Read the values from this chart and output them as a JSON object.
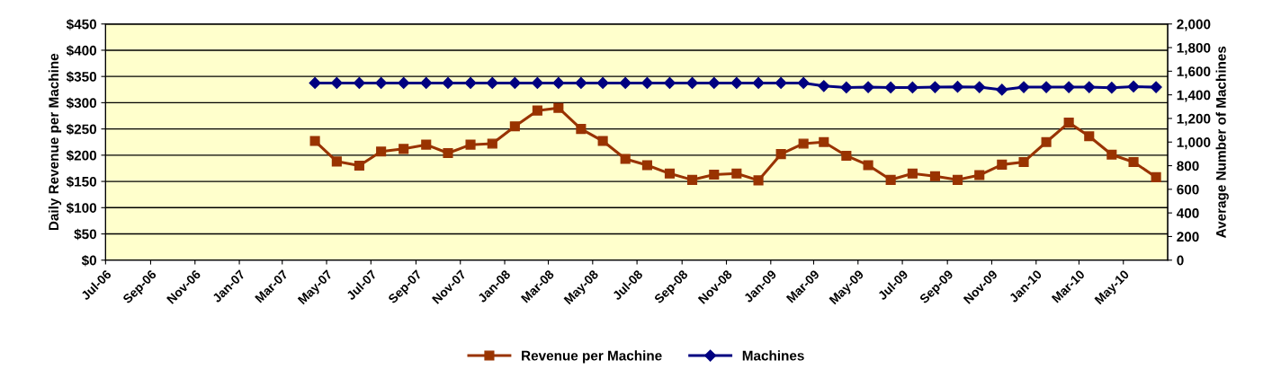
{
  "chart_data": {
    "type": "line",
    "ylabel": "Daily Revenue per Machine",
    "y2label": "Average Number of Machines",
    "x": [
      "2007-04-15",
      "2007-05-15",
      "2007-06-15",
      "2007-07-15",
      "2007-08-15",
      "2007-09-15",
      "2007-10-15",
      "2007-11-15",
      "2007-12-15",
      "2008-01-15",
      "2008-02-15",
      "2008-03-15",
      "2008-04-15",
      "2008-05-15",
      "2008-06-15",
      "2008-07-15",
      "2008-08-15",
      "2008-09-15",
      "2008-10-15",
      "2008-11-15",
      "2008-12-15",
      "2009-01-15",
      "2009-02-15",
      "2009-03-15",
      "2009-04-15",
      "2009-05-15",
      "2009-06-15",
      "2009-07-15",
      "2009-08-15",
      "2009-09-15",
      "2009-10-15",
      "2009-11-15",
      "2009-12-15",
      "2010-01-15",
      "2010-02-15",
      "2010-03-15",
      "2010-04-15",
      "2010-05-15",
      "2010-06-15"
    ],
    "series": [
      {
        "name": "Revenue per Machine",
        "color": "#993300",
        "marker": "square",
        "values": [
          227,
          188,
          180,
          207,
          212,
          220,
          204,
          220,
          222,
          255,
          285,
          290,
          250,
          227,
          193,
          181,
          165,
          153,
          163,
          165,
          152,
          202,
          222,
          225,
          199,
          181,
          153,
          165,
          160,
          153,
          162,
          182,
          187,
          225,
          262,
          236,
          201,
          187,
          158
        ]
      },
      {
        "name": "Machines",
        "color": "#000080",
        "marker": "diamond",
        "axis": "y2",
        "values": [
          1500,
          1500,
          1500,
          1500,
          1500,
          1500,
          1500,
          1500,
          1500,
          1500,
          1500,
          1500,
          1500,
          1500,
          1500,
          1500,
          1500,
          1500,
          1500,
          1500,
          1500,
          1500,
          1500,
          1475,
          1462,
          1465,
          1462,
          1462,
          1465,
          1468,
          1465,
          1443,
          1465,
          1465,
          1465,
          1465,
          1460,
          1470,
          1465
        ]
      }
    ],
    "xlim": [
      "2006-07-01",
      "2010-07-01"
    ],
    "xticks": [
      {
        "value": "2006-07-01",
        "label": "Jul-06"
      },
      {
        "value": "2006-09-01",
        "label": "Sep-06"
      },
      {
        "value": "2006-11-01",
        "label": "Nov-06"
      },
      {
        "value": "2007-01-01",
        "label": "Jan-07"
      },
      {
        "value": "2007-03-01",
        "label": "Mar-07"
      },
      {
        "value": "2007-05-01",
        "label": "May-07"
      },
      {
        "value": "2007-07-01",
        "label": "Jul-07"
      },
      {
        "value": "2007-09-01",
        "label": "Sep-07"
      },
      {
        "value": "2007-11-01",
        "label": "Nov-07"
      },
      {
        "value": "2008-01-01",
        "label": "Jan-08"
      },
      {
        "value": "2008-03-01",
        "label": "Mar-08"
      },
      {
        "value": "2008-05-01",
        "label": "May-08"
      },
      {
        "value": "2008-07-01",
        "label": "Jul-08"
      },
      {
        "value": "2008-09-01",
        "label": "Sep-08"
      },
      {
        "value": "2008-11-01",
        "label": "Nov-08"
      },
      {
        "value": "2009-01-01",
        "label": "Jan-09"
      },
      {
        "value": "2009-03-01",
        "label": "Mar-09"
      },
      {
        "value": "2009-05-01",
        "label": "May-09"
      },
      {
        "value": "2009-07-01",
        "label": "Jul-09"
      },
      {
        "value": "2009-09-01",
        "label": "Sep-09"
      },
      {
        "value": "2009-11-01",
        "label": "Nov-09"
      },
      {
        "value": "2010-01-01",
        "label": "Jan-10"
      },
      {
        "value": "2010-03-01",
        "label": "Mar-10"
      },
      {
        "value": "2010-05-01",
        "label": "May-10"
      }
    ],
    "ylim": [
      0,
      450
    ],
    "yticks": [
      {
        "value": 0,
        "label": "$0"
      },
      {
        "value": 50,
        "label": "$50"
      },
      {
        "value": 100,
        "label": "$100"
      },
      {
        "value": 150,
        "label": "$150"
      },
      {
        "value": 200,
        "label": "$200"
      },
      {
        "value": 250,
        "label": "$250"
      },
      {
        "value": 300,
        "label": "$300"
      },
      {
        "value": 350,
        "label": "$350"
      },
      {
        "value": 400,
        "label": "$400"
      },
      {
        "value": 450,
        "label": "$450"
      }
    ],
    "y2lim": [
      0,
      2000
    ],
    "y2ticks": [
      0,
      200,
      400,
      600,
      800,
      {
        "value": 1000,
        "label": "1,000"
      },
      {
        "value": 1200,
        "label": "1,200"
      },
      {
        "value": 1400,
        "label": "1,400"
      },
      {
        "value": 1600,
        "label": "1,600"
      },
      {
        "value": 1800,
        "label": "1,800"
      },
      {
        "value": 2000,
        "label": "2,000"
      }
    ],
    "grid": "y",
    "legend": "bottom",
    "line_style": "solid"
  }
}
